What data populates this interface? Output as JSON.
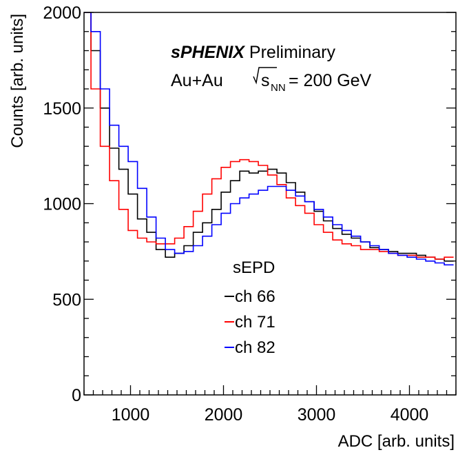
{
  "chart_data": {
    "type": "line",
    "title_bold": "sPHENIX",
    "title_rest": " Preliminary",
    "subtitle_prefix": "Au+Au ",
    "subtitle_s": "s",
    "subtitle_sub": "NN",
    "subtitle_suffix": " = 200 GeV",
    "xlabel": "ADC [arb. units]",
    "ylabel": "Counts [arb. units]",
    "xlim": [
      500,
      4500
    ],
    "ylim": [
      0,
      2000
    ],
    "x_ticks": [
      "1000",
      "2000",
      "3000",
      "4000"
    ],
    "x_tick_values": [
      1000,
      2000,
      3000,
      4000
    ],
    "y_ticks": [
      "0",
      "500",
      "1000",
      "1500",
      "2000"
    ],
    "y_tick_values": [
      0,
      500,
      1000,
      1500,
      2000
    ],
    "legend_title": "sEPD",
    "grid": false,
    "x": [
      525,
      625,
      725,
      825,
      925,
      1025,
      1125,
      1225,
      1325,
      1425,
      1525,
      1625,
      1725,
      1825,
      1925,
      2025,
      2125,
      2225,
      2325,
      2425,
      2525,
      2625,
      2725,
      2825,
      2925,
      3025,
      3125,
      3225,
      3325,
      3425,
      3525,
      3625,
      3725,
      3825,
      3925,
      4025,
      4125,
      4225,
      4325,
      4425
    ],
    "series": [
      {
        "name": "ch 66",
        "color": "#000000",
        "values": [
          2000,
          1800,
          1500,
          1290,
          1180,
          1050,
          920,
          850,
          760,
          720,
          740,
          780,
          850,
          900,
          970,
          1060,
          1120,
          1170,
          1160,
          1170,
          1180,
          1160,
          1110,
          1060,
          1010,
          960,
          910,
          870,
          840,
          820,
          800,
          770,
          760,
          750,
          740,
          740,
          730,
          720,
          710,
          700
        ]
      },
      {
        "name": "ch 71",
        "color": "#ff0000",
        "values": [
          2000,
          1600,
          1300,
          1120,
          970,
          860,
          820,
          800,
          790,
          790,
          820,
          880,
          960,
          1050,
          1130,
          1190,
          1220,
          1230,
          1220,
          1200,
          1150,
          1100,
          1030,
          990,
          950,
          890,
          850,
          810,
          790,
          780,
          760,
          760,
          750,
          740,
          730,
          730,
          720,
          720,
          710,
          720
        ]
      },
      {
        "name": "ch 82",
        "color": "#0000ff",
        "values": [
          2000,
          1900,
          1600,
          1410,
          1300,
          1220,
          1080,
          930,
          820,
          760,
          740,
          750,
          780,
          830,
          890,
          950,
          1000,
          1030,
          1050,
          1070,
          1090,
          1090,
          1070,
          1040,
          1010,
          970,
          930,
          890,
          860,
          830,
          800,
          780,
          760,
          740,
          730,
          720,
          710,
          700,
          690,
          680
        ]
      }
    ]
  }
}
